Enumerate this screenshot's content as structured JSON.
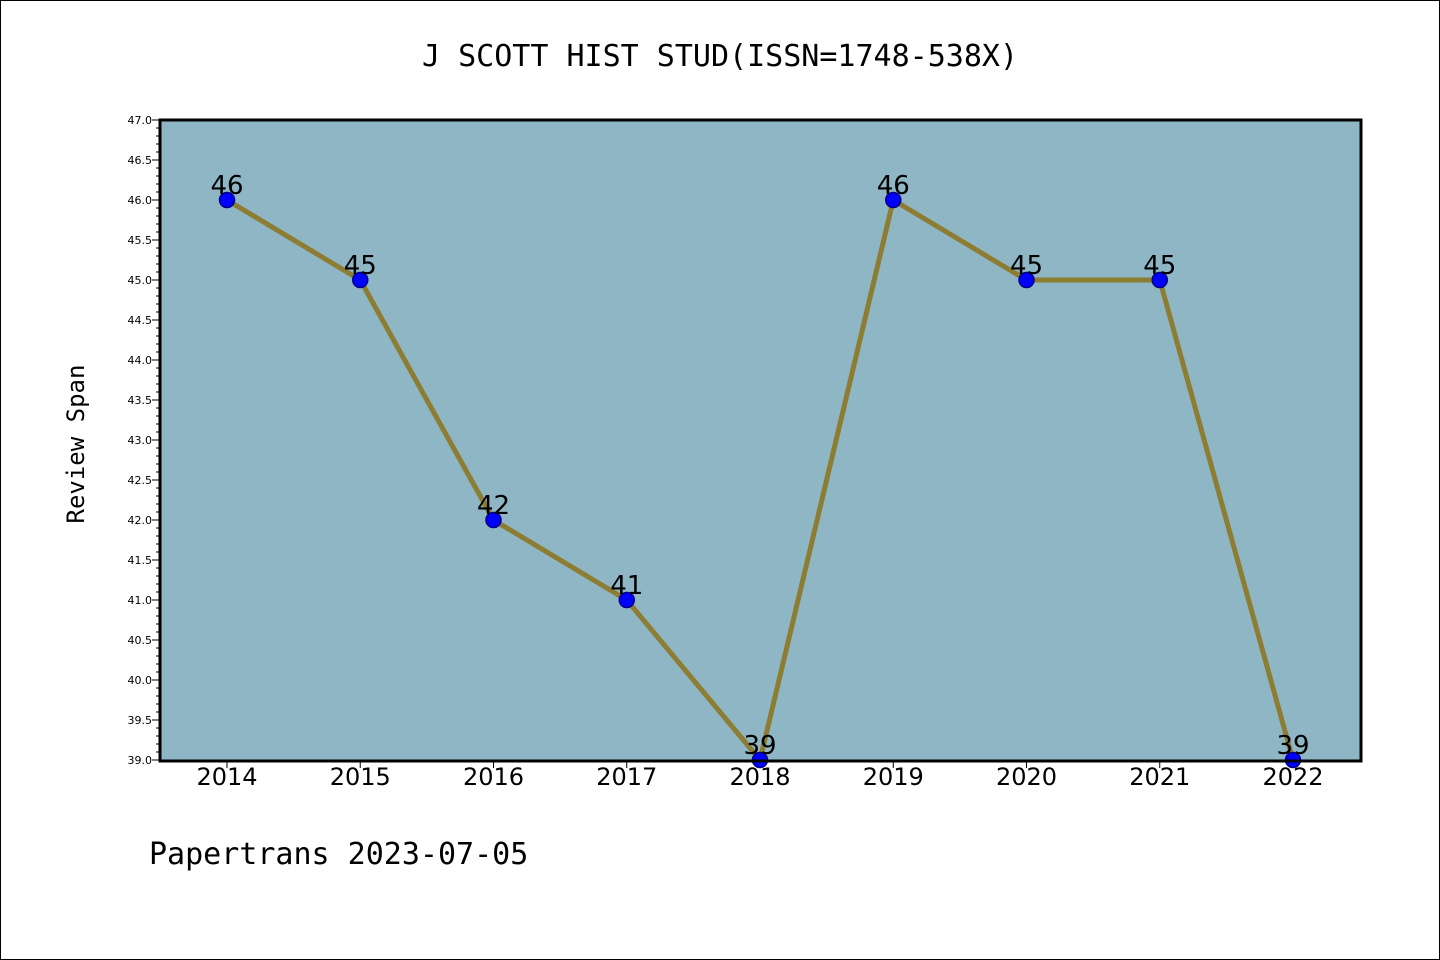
{
  "chart_data": {
    "type": "line",
    "title": "J SCOTT HIST STUD(ISSN=1748-538X)",
    "xlabel": "",
    "ylabel": "Review Span",
    "footer": "Papertrans 2023-07-05",
    "categories": [
      "2014",
      "2015",
      "2016",
      "2017",
      "2018",
      "2019",
      "2020",
      "2021",
      "2022"
    ],
    "series": [
      {
        "values": [
          46,
          45,
          42,
          41,
          39,
          46,
          45,
          45,
          39
        ]
      }
    ],
    "ylim": [
      39.0,
      47.0
    ],
    "yticks": [
      "39.0",
      "39.5",
      "40.0",
      "40.5",
      "41.0",
      "41.5",
      "42.0",
      "42.5",
      "43.0",
      "43.5",
      "44.0",
      "44.5",
      "45.0",
      "45.5",
      "46.0",
      "46.5",
      "47.0"
    ],
    "data_labels": [
      "46",
      "45",
      "42",
      "41",
      "39",
      "46",
      "45",
      "45",
      "39"
    ],
    "grid": false,
    "legend": "none",
    "colors": {
      "plot_background": "#8fb6c4",
      "line": "#8c7d33",
      "marker": "#0000ff",
      "marker_edge": "#00008b",
      "frame": "#000000"
    }
  }
}
